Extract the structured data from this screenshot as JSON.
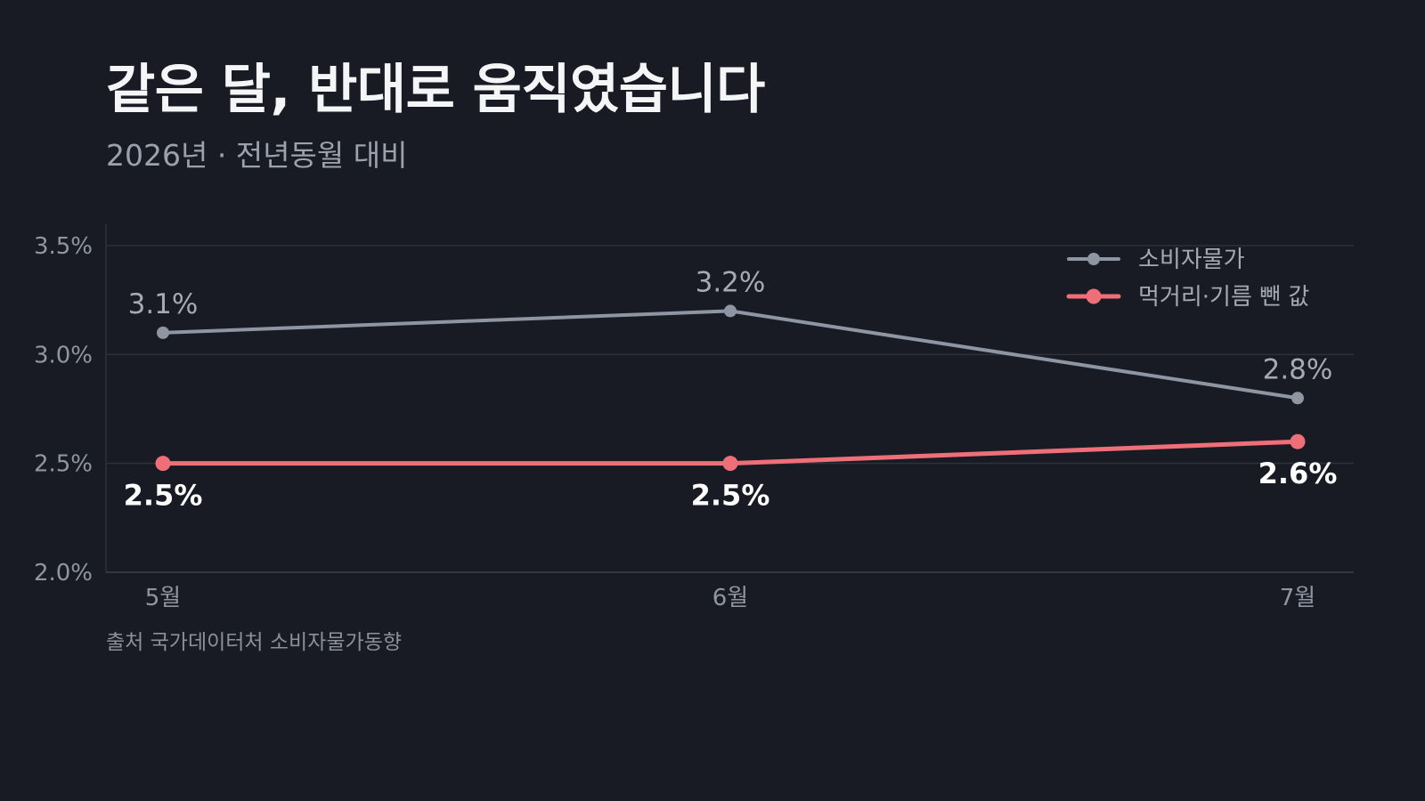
{
  "header": {
    "title": "같은 달, 반대로 움직였습니다",
    "subtitle": "2026년 · 전년동월 대비"
  },
  "footer": {
    "source": "출처 국가데이터처 소비자물가동향"
  },
  "colors": {
    "background": "#181b23",
    "cpi": "#8e95a3",
    "core": "#ef6f79",
    "grid": "#2c313c"
  },
  "chart_data": {
    "type": "line",
    "categories": [
      "5월",
      "6월",
      "7월"
    ],
    "ylim": [
      2.0,
      3.5
    ],
    "yticks": [
      2.0,
      2.5,
      3.0,
      3.5
    ],
    "ytick_labels": [
      "2.0%",
      "2.5%",
      "3.0%",
      "3.5%"
    ],
    "grid": true,
    "legend_position": "top-right",
    "series": [
      {
        "name": "소비자물가",
        "values": [
          3.1,
          3.2,
          2.8
        ],
        "labels": [
          "3.1%",
          "3.2%",
          "2.8%"
        ],
        "color": "#8e95a3"
      },
      {
        "name": "먹거리·기름 뺀 값",
        "values": [
          2.5,
          2.5,
          2.6
        ],
        "labels": [
          "2.5%",
          "2.5%",
          "2.6%"
        ],
        "color": "#ef6f79"
      }
    ]
  }
}
